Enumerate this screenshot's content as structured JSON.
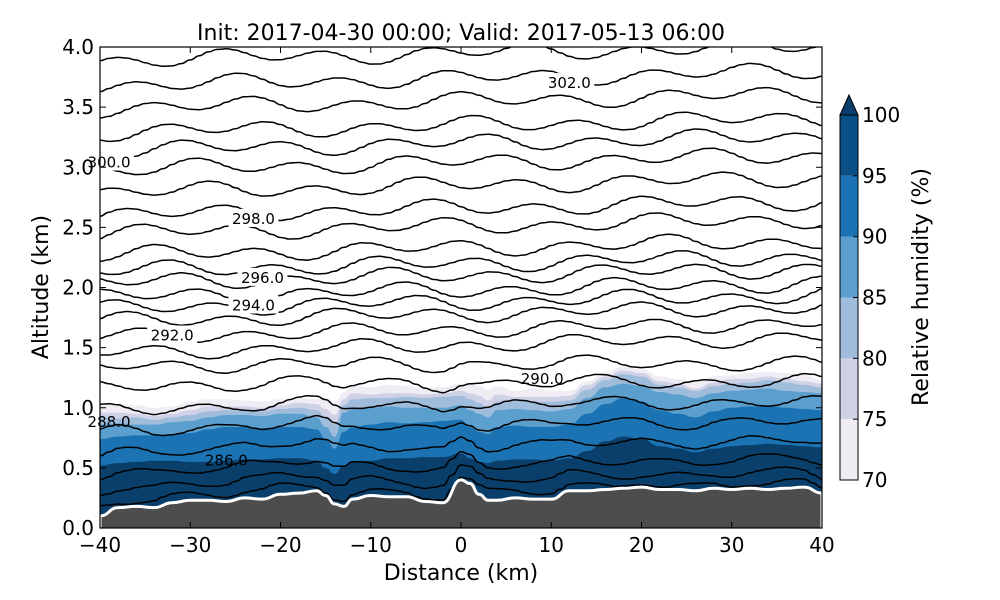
{
  "chart_data": {
    "type": "contour-cross-section",
    "title": "Init: 2017-04-30 00:00; Valid: 2017-05-13 06:00",
    "xlabel": "Distance (km)",
    "ylabel": "Altitude (km)",
    "xlim": [
      -40,
      40
    ],
    "ylim": [
      0.0,
      4.0
    ],
    "xticks": [
      "−40",
      "−30",
      "−20",
      "−10",
      "0",
      "10",
      "20",
      "30",
      "40"
    ],
    "xtick_values": [
      -40,
      -30,
      -20,
      -10,
      0,
      10,
      20,
      30,
      40
    ],
    "yticks": [
      "0.0",
      "0.5",
      "1.0",
      "1.5",
      "2.0",
      "2.5",
      "3.0",
      "3.5",
      "4.0"
    ],
    "ytick_values": [
      0.0,
      0.5,
      1.0,
      1.5,
      2.0,
      2.5,
      3.0,
      3.5,
      4.0
    ],
    "colorbar": {
      "label": "Relative humidity (%)",
      "levels": [
        70,
        75,
        80,
        85,
        90,
        95,
        100
      ],
      "tick_labels": [
        "70",
        "75",
        "80",
        "85",
        "90",
        "95",
        "100"
      ],
      "colors": [
        "#efecf4",
        "#cfd2e7",
        "#a0bcdb",
        "#5b9fce",
        "#1b73b3",
        "#0a4f85",
        "#0a3f6b"
      ],
      "extend": "max"
    },
    "terrain": {
      "color": "#4d4d4d",
      "x": [
        -40,
        -38,
        -36,
        -34,
        -32,
        -30,
        -28,
        -26,
        -24,
        -22,
        -20,
        -18,
        -16,
        -15,
        -14,
        -13,
        -12,
        -10,
        -8,
        -6,
        -4,
        -2,
        0,
        1,
        2,
        3,
        4,
        6,
        8,
        10,
        12,
        14,
        16,
        18,
        20,
        22,
        24,
        26,
        28,
        30,
        32,
        34,
        36,
        38,
        40
      ],
      "y": [
        0.1,
        0.17,
        0.18,
        0.17,
        0.21,
        0.23,
        0.23,
        0.22,
        0.25,
        0.24,
        0.28,
        0.29,
        0.31,
        0.27,
        0.2,
        0.18,
        0.24,
        0.27,
        0.26,
        0.26,
        0.22,
        0.21,
        0.4,
        0.37,
        0.28,
        0.23,
        0.23,
        0.25,
        0.24,
        0.24,
        0.31,
        0.31,
        0.32,
        0.33,
        0.34,
        0.32,
        0.32,
        0.31,
        0.33,
        0.32,
        0.33,
        0.32,
        0.33,
        0.34,
        0.29
      ]
    },
    "rh_layers": [
      {
        "rh": 75,
        "top": [
          1.02,
          1.03,
          1.02,
          1.0,
          1.01,
          1.05,
          1.07,
          1.07,
          1.06,
          1.05,
          1.07,
          1.08,
          1.07,
          1.08,
          1.04,
          1.13,
          1.18,
          1.17,
          1.19,
          1.18,
          1.16,
          1.17,
          1.2,
          1.2,
          1.18,
          1.15,
          1.18,
          1.14,
          1.16,
          1.14,
          1.14,
          1.22,
          1.3,
          1.34,
          1.32,
          1.26,
          1.24,
          1.21,
          1.26,
          1.27,
          1.29,
          1.3,
          1.29,
          1.27,
          1.23
        ]
      },
      {
        "rh": 80,
        "top": [
          0.96,
          0.96,
          0.95,
          0.93,
          0.95,
          0.98,
          1.01,
          1.01,
          1.01,
          1.0,
          1.02,
          1.04,
          1.03,
          0.99,
          0.94,
          1.07,
          1.12,
          1.11,
          1.12,
          1.12,
          1.11,
          1.12,
          1.14,
          1.12,
          1.1,
          1.06,
          1.11,
          1.09,
          1.09,
          1.09,
          1.1,
          1.19,
          1.26,
          1.31,
          1.29,
          1.22,
          1.2,
          1.16,
          1.21,
          1.24,
          1.24,
          1.26,
          1.24,
          1.22,
          1.2
        ]
      },
      {
        "rh": 85,
        "top": [
          0.92,
          0.91,
          0.92,
          0.9,
          0.92,
          0.94,
          0.97,
          0.98,
          0.98,
          0.97,
          0.99,
          1.0,
          0.98,
          0.92,
          0.86,
          1.02,
          1.07,
          1.08,
          1.08,
          1.09,
          1.08,
          1.09,
          1.1,
          1.07,
          1.04,
          1.0,
          1.05,
          1.06,
          1.05,
          1.05,
          1.06,
          1.15,
          1.23,
          1.28,
          1.26,
          1.19,
          1.17,
          1.14,
          1.18,
          1.2,
          1.21,
          1.23,
          1.21,
          1.19,
          1.17
        ]
      },
      {
        "rh": 90,
        "top": [
          0.86,
          0.87,
          0.86,
          0.86,
          0.88,
          0.89,
          0.92,
          0.94,
          0.94,
          0.93,
          0.95,
          0.95,
          0.92,
          0.84,
          0.76,
          0.96,
          0.99,
          1.0,
          1.01,
          1.0,
          1.0,
          1.0,
          1.02,
          0.98,
          0.95,
          0.92,
          0.98,
          0.99,
          0.98,
          0.97,
          0.99,
          1.08,
          1.17,
          1.2,
          1.18,
          1.13,
          1.11,
          1.08,
          1.12,
          1.14,
          1.15,
          1.16,
          1.14,
          1.13,
          1.12
        ]
      },
      {
        "rh": 95,
        "top": [
          0.74,
          0.76,
          0.77,
          0.77,
          0.78,
          0.79,
          0.82,
          0.84,
          0.84,
          0.83,
          0.84,
          0.84,
          0.82,
          0.74,
          0.66,
          0.8,
          0.84,
          0.86,
          0.88,
          0.87,
          0.88,
          0.89,
          0.9,
          0.84,
          0.8,
          0.78,
          0.84,
          0.85,
          0.84,
          0.84,
          0.86,
          0.95,
          1.03,
          1.08,
          1.05,
          0.98,
          0.95,
          0.92,
          0.97,
          1.0,
          1.01,
          1.02,
          1.0,
          0.99,
          0.98
        ]
      }
    ],
    "rh_max_layer_top": [
      0.52,
      0.54,
      0.55,
      0.56,
      0.56,
      0.55,
      0.55,
      0.56,
      0.57,
      0.57,
      0.58,
      0.58,
      0.56,
      0.5,
      0.45,
      0.52,
      0.55,
      0.56,
      0.58,
      0.58,
      0.59,
      0.59,
      0.62,
      0.58,
      0.55,
      0.54,
      0.56,
      0.57,
      0.57,
      0.56,
      0.58,
      0.64,
      0.72,
      0.76,
      0.74,
      0.68,
      0.66,
      0.63,
      0.66,
      0.68,
      0.69,
      0.7,
      0.69,
      0.68,
      0.67
    ],
    "theta_contours": {
      "x": [
        -40,
        -38,
        -36,
        -34,
        -32,
        -30,
        -28,
        -26,
        -24,
        -22,
        -20,
        -18,
        -16,
        -15,
        -14,
        -13,
        -12,
        -10,
        -8,
        -6,
        -4,
        -2,
        0,
        1,
        2,
        3,
        4,
        6,
        8,
        10,
        12,
        14,
        16,
        18,
        20,
        22,
        24,
        26,
        28,
        30,
        32,
        34,
        36,
        38,
        40
      ],
      "base_heights": [
        0.3,
        0.4,
        0.52,
        0.68,
        0.85,
        1.02,
        1.2,
        1.36,
        1.52,
        1.65,
        1.78,
        1.88,
        1.98,
        2.1,
        2.2,
        2.33,
        2.51,
        2.66,
        2.85,
        3.04,
        3.2,
        3.35,
        3.55,
        3.74,
        3.95
      ],
      "labels": [
        {
          "text": "286.0",
          "x": -26,
          "y": 0.56
        },
        {
          "text": "288.0",
          "x": -39,
          "y": 0.88
        },
        {
          "text": "290.0",
          "x": 9,
          "y": 1.24
        },
        {
          "text": "292.0",
          "x": -32,
          "y": 1.6
        },
        {
          "text": "294.0",
          "x": -23,
          "y": 1.85
        },
        {
          "text": "296.0",
          "x": -22,
          "y": 2.08
        },
        {
          "text": "298.0",
          "x": -23,
          "y": 2.57
        },
        {
          "text": "300.0",
          "x": -39,
          "y": 3.04
        },
        {
          "text": "302.0",
          "x": 12,
          "y": 3.7
        }
      ]
    }
  }
}
